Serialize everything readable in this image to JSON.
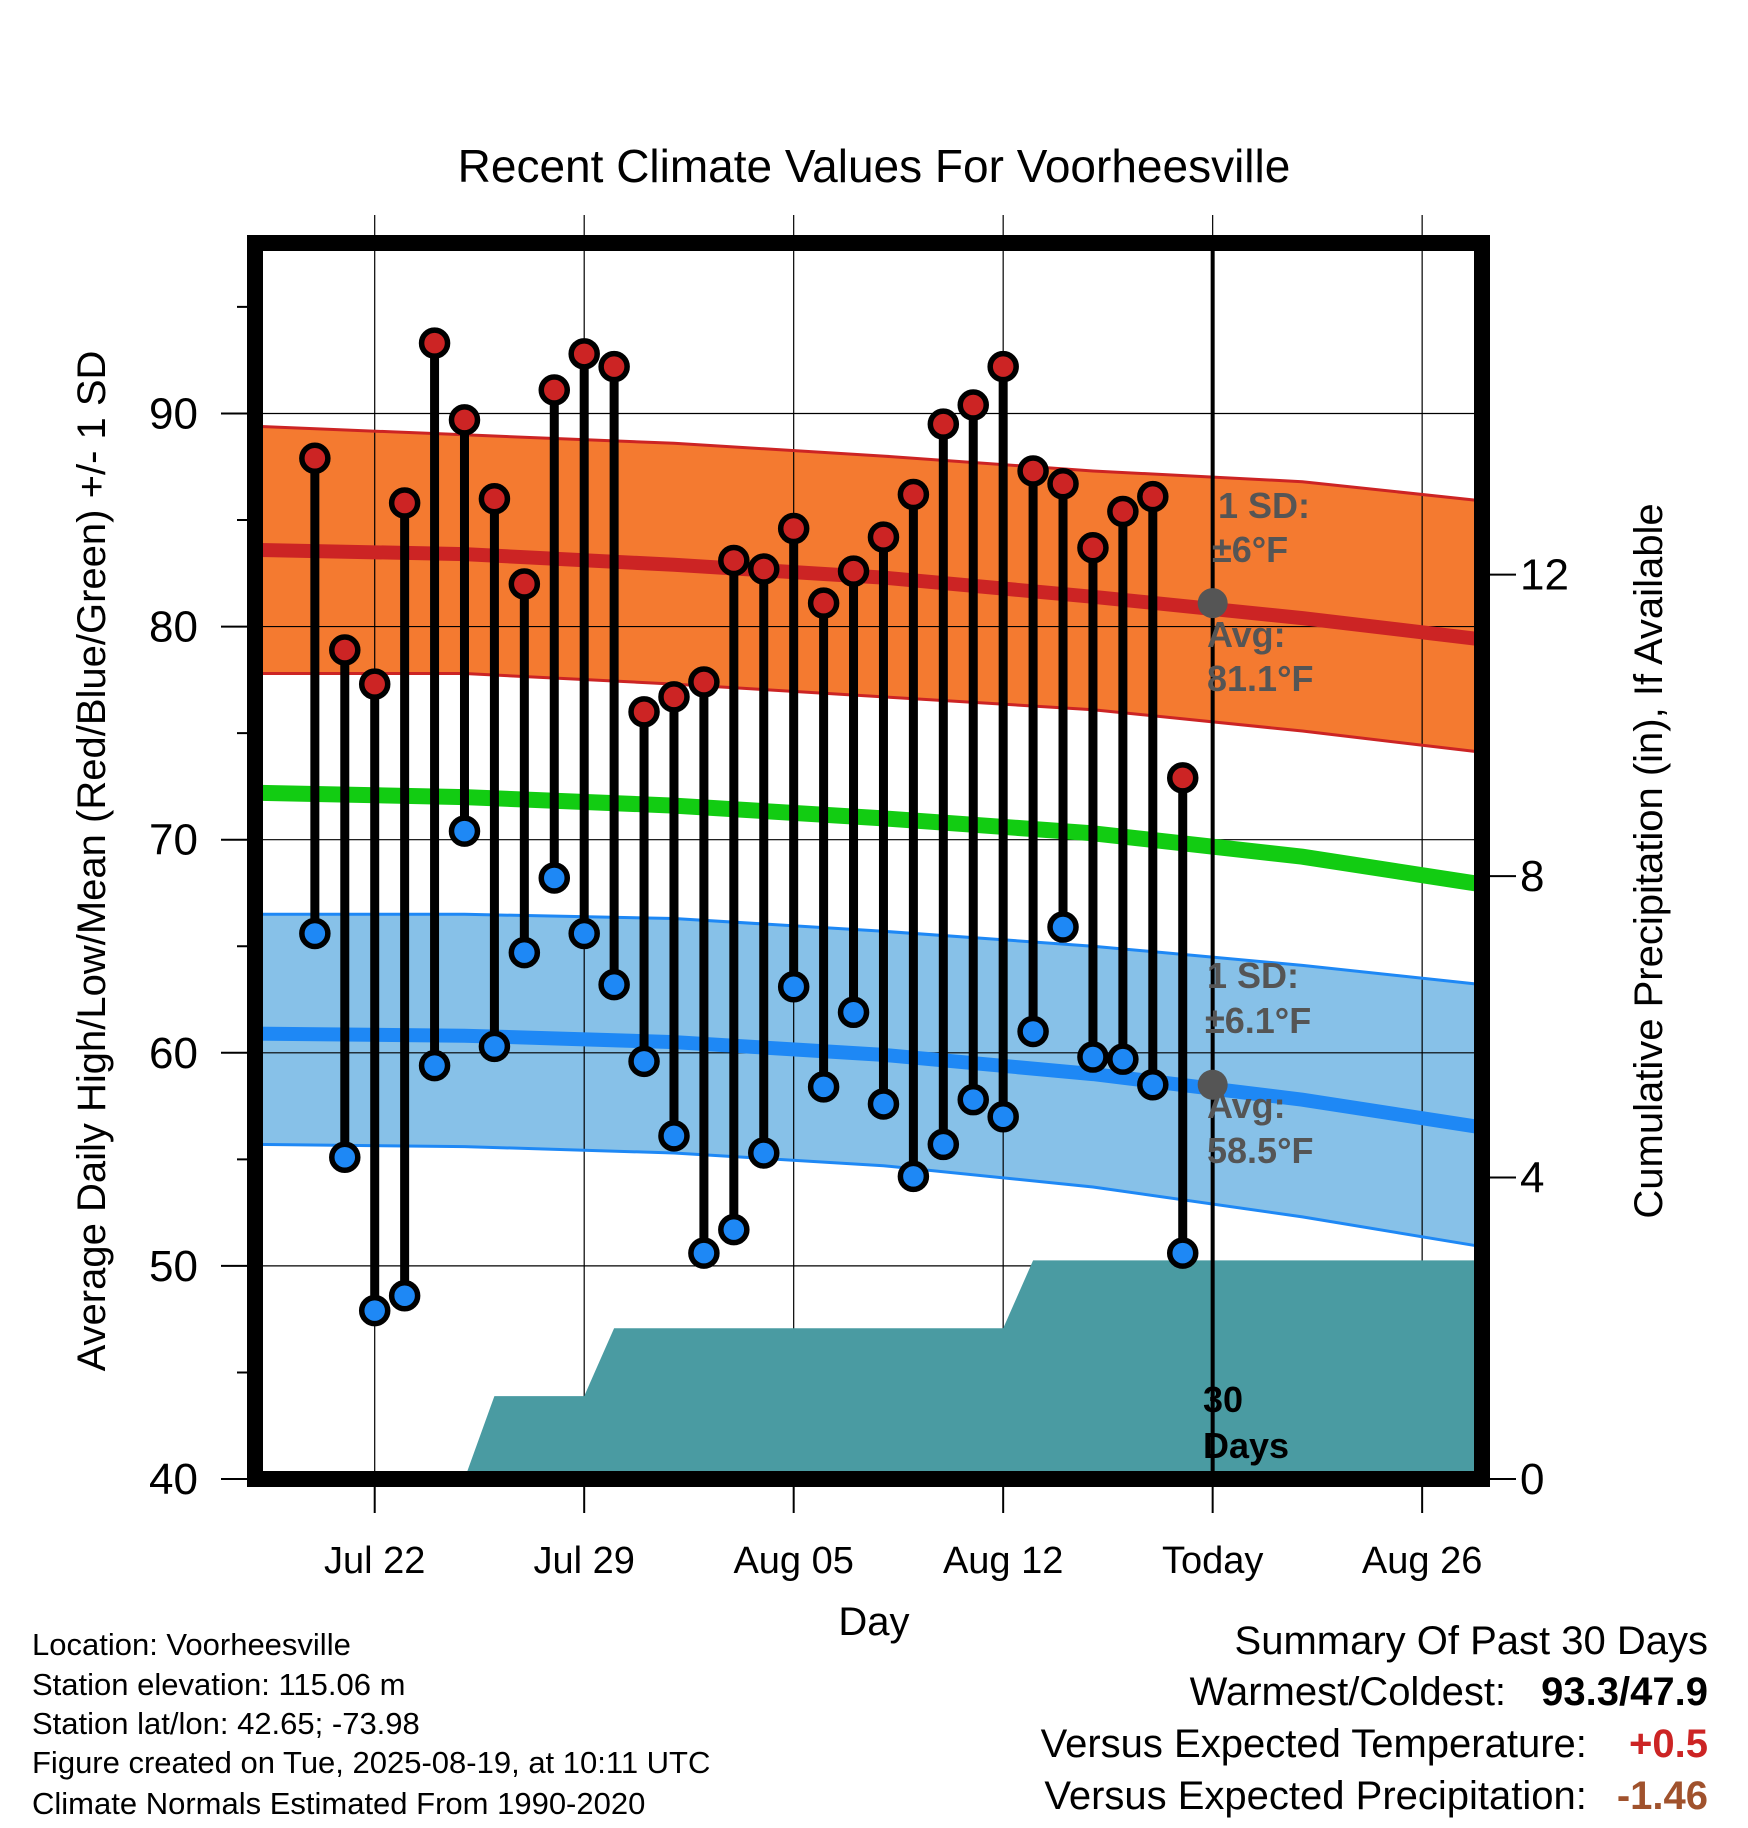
{
  "chart_data": {
    "type": "line",
    "title": "Recent Climate Values For Voorheesville",
    "xlabel": "Day",
    "ylabel": "Average Daily High/Low/Mean (Red/Blue/Green) +/- 1 SD",
    "y2label": "Cumulative Precipitation (in), If Available",
    "ylim": [
      40,
      98
    ],
    "y2lim": [
      0,
      16.4
    ],
    "yticks": [
      "40",
      "50",
      "60",
      "70",
      "80",
      "90"
    ],
    "y2ticks": [
      "0",
      "4",
      "8",
      "12"
    ],
    "xlim": [
      "2025-07-18",
      "2025-08-28"
    ],
    "xticks": [
      {
        "date": "2025-07-22",
        "label": "Jul 22"
      },
      {
        "date": "2025-07-29",
        "label": "Jul 29"
      },
      {
        "date": "2025-08-05",
        "label": "Aug 05"
      },
      {
        "date": "2025-08-12",
        "label": "Aug 12"
      },
      {
        "date": "2025-08-19",
        "label": "Today"
      },
      {
        "date": "2025-08-26",
        "label": "Aug 26"
      }
    ],
    "grid": true,
    "dates": [
      "2025-07-20",
      "2025-07-21",
      "2025-07-22",
      "2025-07-23",
      "2025-07-24",
      "2025-07-25",
      "2025-07-26",
      "2025-07-27",
      "2025-07-28",
      "2025-07-29",
      "2025-07-30",
      "2025-07-31",
      "2025-08-01",
      "2025-08-02",
      "2025-08-03",
      "2025-08-04",
      "2025-08-05",
      "2025-08-06",
      "2025-08-07",
      "2025-08-08",
      "2025-08-09",
      "2025-08-10",
      "2025-08-11",
      "2025-08-12",
      "2025-08-13",
      "2025-08-14",
      "2025-08-15",
      "2025-08-16",
      "2025-08-17",
      "2025-08-18"
    ],
    "highs": [
      87.9,
      78.9,
      77.3,
      85.8,
      93.3,
      89.7,
      86.0,
      82.0,
      91.1,
      92.8,
      92.2,
      76.0,
      76.7,
      77.4,
      83.1,
      82.7,
      84.6,
      81.1,
      82.6,
      84.2,
      86.2,
      89.5,
      90.4,
      92.2,
      87.3,
      86.7,
      83.7,
      85.4,
      86.1,
      72.9
    ],
    "lows": [
      65.6,
      55.1,
      47.9,
      48.6,
      59.4,
      70.4,
      60.3,
      64.7,
      68.2,
      65.6,
      63.2,
      59.6,
      56.1,
      50.6,
      51.7,
      55.3,
      63.1,
      58.4,
      61.9,
      57.6,
      54.2,
      55.7,
      57.8,
      57.0,
      61.0,
      65.9,
      59.8,
      59.7,
      58.5,
      50.6
    ],
    "normals": [
      {
        "date": "2025-07-18",
        "high": 83.6,
        "high_upper": 89.4,
        "high_lower": 77.8,
        "mean": 72.2,
        "low": 60.9,
        "low_upper": 66.5,
        "low_lower": 55.7
      },
      {
        "date": "2025-07-25",
        "high": 83.4,
        "high_upper": 89.0,
        "high_lower": 77.8,
        "mean": 72.0,
        "low": 60.8,
        "low_upper": 66.5,
        "low_lower": 55.6
      },
      {
        "date": "2025-08-01",
        "high": 82.9,
        "high_upper": 88.6,
        "high_lower": 77.3,
        "mean": 71.6,
        "low": 60.5,
        "low_upper": 66.3,
        "low_lower": 55.3
      },
      {
        "date": "2025-08-08",
        "high": 82.3,
        "high_upper": 88.0,
        "high_lower": 76.7,
        "mean": 71.0,
        "low": 59.9,
        "low_upper": 65.7,
        "low_lower": 54.7
      },
      {
        "date": "2025-08-15",
        "high": 81.4,
        "high_upper": 87.3,
        "high_lower": 76.1,
        "mean": 70.3,
        "low": 59.0,
        "low_upper": 65.0,
        "low_lower": 53.7
      },
      {
        "date": "2025-08-22",
        "high": 80.4,
        "high_upper": 86.8,
        "high_lower": 75.1,
        "mean": 69.2,
        "low": 57.8,
        "low_upper": 64.1,
        "low_lower": 52.3
      },
      {
        "date": "2025-08-28",
        "high": 79.4,
        "high_upper": 85.9,
        "high_lower": 74.1,
        "mean": 67.9,
        "low": 56.5,
        "low_upper": 63.2,
        "low_lower": 50.9
      }
    ],
    "precip": {
      "points": [
        {
          "date": "2025-07-18",
          "value": 0
        },
        {
          "date": "2025-07-25",
          "value": 0
        },
        {
          "date": "2025-07-26",
          "value": 1.1
        },
        {
          "date": "2025-07-29",
          "value": 1.1
        },
        {
          "date": "2025-07-30",
          "value": 2.0
        },
        {
          "date": "2025-08-12",
          "value": 2.0
        },
        {
          "date": "2025-08-13",
          "value": 2.9
        },
        {
          "date": "2025-08-28",
          "value": 2.9
        }
      ],
      "color": "#4a9ba2"
    },
    "today": {
      "date": "2025-08-19",
      "normal_high": 81.1,
      "normal_low": 58.5
    },
    "annotations": {
      "high_sd_line1": "1 SD:",
      "high_sd_line2": "±6°F",
      "high_avg_line1": "Avg:",
      "high_avg_line2": "81.1°F",
      "low_sd_line1": "1 SD:",
      "low_sd_line2": "±6.1°F",
      "low_avg_line1": "Avg:",
      "low_avg_line2": "58.5°F",
      "days_line1": "30",
      "days_line2": "Days"
    },
    "colors": {
      "high_band": "#f47a30",
      "high_line": "#cc2424",
      "low_band": "#87c1e8",
      "low_line": "#1e88f5",
      "mean_line": "#12cc12",
      "high_marker": "#cc2424",
      "low_marker": "#1e88f5",
      "avg_marker": "#555555",
      "annotation_text": "#555555"
    }
  },
  "footer": {
    "location": "Location: Voorheesville",
    "elevation": "Station elevation: 115.06 m",
    "latlon": "Station lat/lon: 42.65; -73.98",
    "created": "Figure created on Tue, 2025-08-19, at 10:11 UTC",
    "normals": "Climate Normals Estimated From 1990-2020"
  },
  "summary": {
    "title": "Summary Of Past 30 Days",
    "warmest_label": "Warmest/Coldest:",
    "warmest_value": "93.3/47.9",
    "temp_label": "Versus Expected Temperature:",
    "temp_value": "+0.5",
    "temp_color": "#cc2424",
    "precip_label": "Versus Expected Precipitation:",
    "precip_value": "-1.46",
    "precip_color": "#a0522d"
  }
}
